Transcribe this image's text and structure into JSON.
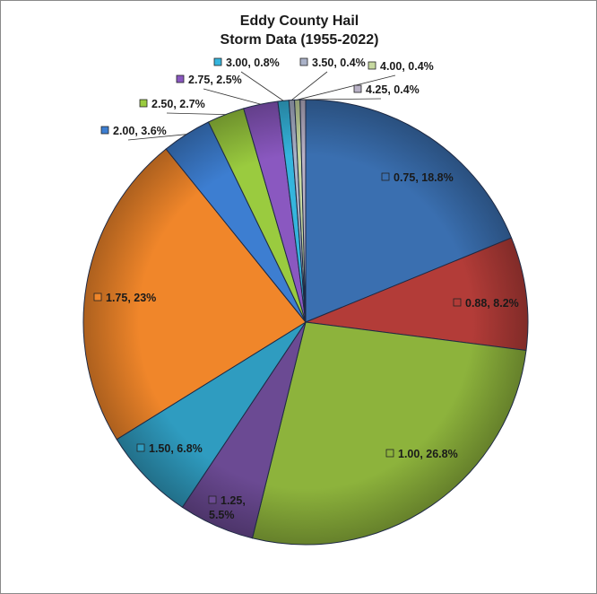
{
  "chart_data": {
    "type": "pie",
    "title_lines": [
      "Eddy County Hail",
      "Storm Data (1955-2022)"
    ],
    "slices": [
      {
        "label": "0.75",
        "value": 18.8,
        "color": "#3a6fb0"
      },
      {
        "label": "0.88",
        "value": 8.2,
        "color": "#b33c38"
      },
      {
        "label": "1.00",
        "value": 26.8,
        "color": "#8db33c"
      },
      {
        "label": "1.25",
        "value": 5.5,
        "color": "#6b4a93"
      },
      {
        "label": "1.50",
        "value": 6.8,
        "color": "#2f9cc0"
      },
      {
        "label": "1.75",
        "value": 23.0,
        "color": "#f0862a"
      },
      {
        "label": "2.00",
        "value": 3.6,
        "color": "#3d7ed1"
      },
      {
        "label": "2.50",
        "value": 2.7,
        "color": "#9acb3f"
      },
      {
        "label": "2.75",
        "value": 2.5,
        "color": "#8a58c0"
      },
      {
        "label": "3.00",
        "value": 0.8,
        "color": "#35b5dd"
      },
      {
        "label": "3.50",
        "value": 0.4,
        "color": "#aab2c8"
      },
      {
        "label": "4.00",
        "value": 0.4,
        "color": "#c7d9a0"
      },
      {
        "label": "4.25",
        "value": 0.4,
        "color": "#b9b2c6"
      }
    ],
    "data_label_format": "{label}, {value}%",
    "legend": "none"
  }
}
